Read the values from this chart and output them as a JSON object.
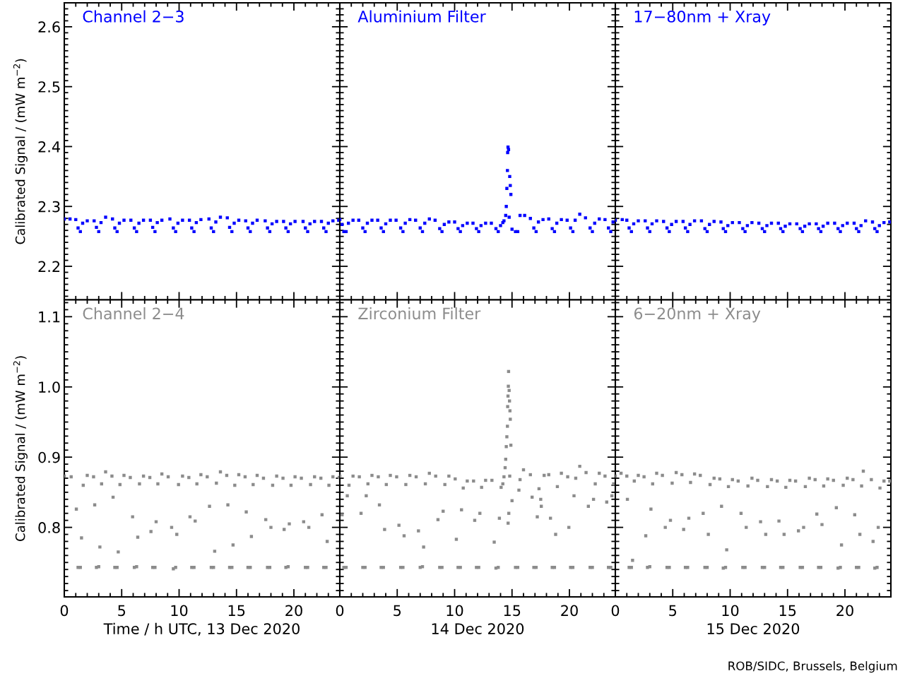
{
  "chart_data": [
    {
      "type": "scatter",
      "title": "Channel 2−3",
      "ylabel": "Calibrated Signal / (mW m$^{−2}$)",
      "marker": "square",
      "tick_labels": "y",
      "xlim": [
        0,
        24
      ],
      "xticks": [
        0,
        5,
        10,
        15,
        20
      ],
      "ylim": [
        2.144,
        2.64
      ],
      "yticks": [
        2.2,
        2.3,
        2.4,
        2.5,
        2.6
      ],
      "series": [
        {
          "color": "#0000ff",
          "x": [
            0,
            0.5,
            1.0,
            1.2,
            1.4,
            1.6,
            2.0,
            2.6,
            2.8,
            3.0,
            3.2,
            3.6,
            4.2,
            4.4,
            4.6,
            4.8,
            5.2,
            5.8,
            6.1,
            6.3,
            6.5,
            6.9,
            7.5,
            7.7,
            7.9,
            8.1,
            8.5,
            9.2,
            9.5,
            9.7,
            9.9,
            10.3,
            10.9,
            11.1,
            11.3,
            11.5,
            11.9,
            12.6,
            12.8,
            13.0,
            13.2,
            13.6,
            14.2,
            14.4,
            14.6,
            14.8,
            15.2,
            15.8,
            16.0,
            16.2,
            16.4,
            16.8,
            17.5,
            17.7,
            17.9,
            18.1,
            18.5,
            19.1,
            19.3,
            19.5,
            19.7,
            20.1,
            20.8,
            21.0,
            21.2,
            21.4,
            21.8,
            22.4,
            22.6,
            22.8,
            23.0,
            23.4,
            23.9
          ],
          "values": [
            2.279,
            2.279,
            2.278,
            2.264,
            2.258,
            2.272,
            2.276,
            2.276,
            2.265,
            2.258,
            2.273,
            2.282,
            2.279,
            2.264,
            2.258,
            2.272,
            2.277,
            2.277,
            2.264,
            2.258,
            2.272,
            2.277,
            2.277,
            2.265,
            2.258,
            2.273,
            2.277,
            2.279,
            2.264,
            2.258,
            2.272,
            2.277,
            2.277,
            2.264,
            2.258,
            2.273,
            2.278,
            2.279,
            2.264,
            2.258,
            2.274,
            2.282,
            2.281,
            2.265,
            2.258,
            2.272,
            2.277,
            2.276,
            2.264,
            2.258,
            2.272,
            2.277,
            2.276,
            2.264,
            2.258,
            2.271,
            2.275,
            2.275,
            2.264,
            2.258,
            2.271,
            2.275,
            2.275,
            2.264,
            2.258,
            2.271,
            2.275,
            2.275,
            2.264,
            2.258,
            2.272,
            2.276,
            2.277
          ]
        }
      ]
    },
    {
      "type": "scatter",
      "title": "Aluminium Filter",
      "marker": "square",
      "tick_labels": false,
      "xlim": [
        0,
        24
      ],
      "xticks": [
        0,
        5,
        10,
        15,
        20
      ],
      "ylim": [
        2.144,
        2.64
      ],
      "yticks": [
        2.2,
        2.3,
        2.4,
        2.5,
        2.6
      ],
      "series": [
        {
          "color": "#0000ff",
          "x": [
            0,
            0.2,
            0.35,
            0.55,
            0.75,
            1.15,
            1.65,
            2.0,
            2.2,
            2.4,
            2.8,
            3.3,
            3.6,
            3.8,
            4.0,
            4.4,
            4.9,
            5.3,
            5.5,
            5.7,
            6.1,
            6.6,
            7.0,
            7.2,
            7.4,
            7.8,
            8.3,
            8.7,
            8.9,
            9.1,
            9.5,
            10.0,
            10.3,
            10.5,
            10.7,
            11.1,
            11.6,
            11.9,
            12.1,
            12.3,
            12.7,
            13.2,
            13.6,
            13.8,
            14.0,
            14.2,
            14.3,
            14.45,
            14.5,
            14.55,
            14.6,
            14.62,
            14.65,
            14.7,
            14.75,
            14.8,
            14.85,
            14.9,
            15.0,
            15.3,
            15.5,
            15.7,
            16.1,
            16.6,
            16.9,
            17.1,
            17.3,
            17.7,
            18.2,
            18.5,
            18.7,
            18.9,
            19.3,
            19.8,
            20.1,
            20.3,
            20.5,
            20.9,
            21.4,
            21.8,
            22.0,
            22.2,
            22.6,
            23.1,
            23.4,
            23.6,
            23.8
          ],
          "values": [
            2.278,
            2.27,
            2.258,
            2.258,
            2.272,
            2.277,
            2.277,
            2.264,
            2.258,
            2.272,
            2.277,
            2.277,
            2.264,
            2.258,
            2.271,
            2.277,
            2.277,
            2.264,
            2.258,
            2.272,
            2.278,
            2.277,
            2.264,
            2.258,
            2.272,
            2.279,
            2.277,
            2.263,
            2.258,
            2.27,
            2.274,
            2.274,
            2.263,
            2.258,
            2.268,
            2.272,
            2.272,
            2.263,
            2.258,
            2.268,
            2.272,
            2.272,
            2.263,
            2.258,
            2.268,
            2.273,
            2.276,
            2.285,
            2.3,
            2.33,
            2.36,
            2.39,
            2.399,
            2.395,
            2.282,
            2.35,
            2.335,
            2.32,
            2.262,
            2.258,
            2.258,
            2.285,
            2.285,
            2.28,
            2.264,
            2.258,
            2.274,
            2.278,
            2.279,
            2.263,
            2.258,
            2.272,
            2.278,
            2.277,
            2.264,
            2.258,
            2.277,
            2.287,
            2.281,
            2.264,
            2.258,
            2.272,
            2.279,
            2.278,
            2.264,
            2.258,
            2.274
          ]
        }
      ]
    },
    {
      "type": "scatter",
      "title": "17−80nm + Xray",
      "marker": "square",
      "tick_labels": false,
      "xlim": [
        0,
        24
      ],
      "xticks": [
        0,
        5,
        10,
        15,
        20
      ],
      "ylim": [
        2.144,
        2.64
      ],
      "yticks": [
        2.2,
        2.3,
        2.4,
        2.5,
        2.6
      ],
      "series": [
        {
          "color": "#0000ff",
          "x": [
            0,
            0.6,
            1.0,
            1.2,
            1.4,
            1.6,
            2.0,
            2.6,
            2.8,
            3.0,
            3.2,
            3.6,
            4.2,
            4.5,
            4.7,
            4.9,
            5.3,
            5.9,
            6.1,
            6.3,
            6.5,
            6.9,
            7.5,
            7.8,
            8.0,
            8.2,
            8.6,
            9.2,
            9.4,
            9.6,
            9.8,
            10.2,
            10.8,
            11.1,
            11.3,
            11.5,
            11.9,
            12.5,
            12.8,
            13.0,
            13.2,
            13.6,
            14.2,
            14.4,
            14.6,
            14.8,
            15.2,
            15.8,
            16.1,
            16.3,
            16.5,
            16.9,
            17.5,
            17.7,
            17.9,
            18.1,
            18.5,
            19.1,
            19.4,
            19.6,
            19.8,
            20.2,
            20.8,
            21.0,
            21.2,
            21.4,
            21.8,
            22.4,
            22.6,
            22.8,
            23.0,
            23.4,
            23.9
          ],
          "values": [
            2.277,
            2.278,
            2.277,
            2.264,
            2.258,
            2.271,
            2.276,
            2.276,
            2.264,
            2.258,
            2.271,
            2.276,
            2.275,
            2.264,
            2.258,
            2.27,
            2.275,
            2.275,
            2.264,
            2.258,
            2.27,
            2.276,
            2.276,
            2.263,
            2.258,
            2.27,
            2.275,
            2.274,
            2.263,
            2.258,
            2.268,
            2.273,
            2.273,
            2.263,
            2.258,
            2.268,
            2.273,
            2.272,
            2.263,
            2.258,
            2.268,
            2.272,
            2.272,
            2.263,
            2.258,
            2.267,
            2.271,
            2.271,
            2.263,
            2.258,
            2.267,
            2.271,
            2.271,
            2.263,
            2.258,
            2.267,
            2.272,
            2.272,
            2.263,
            2.258,
            2.268,
            2.272,
            2.272,
            2.263,
            2.258,
            2.268,
            2.276,
            2.274,
            2.263,
            2.258,
            2.268,
            2.273,
            2.274
          ]
        }
      ]
    },
    {
      "type": "scatter",
      "title": "Channel 2−4",
      "xlabel": "Time / h UTC, 13 Dec 2020",
      "ylabel": "Calibrated Signal / (mW m$^{−2}$)",
      "marker": "square",
      "xlim": [
        0,
        24
      ],
      "xticks": [
        0,
        5,
        10,
        15,
        20
      ],
      "ylim": [
        0.701,
        1.124
      ],
      "yticks": [
        0.8,
        0.9,
        {
          "value": 1.0,
          "label": "1.0"
        },
        1.1
      ],
      "series": [
        {
          "color": "#8c8c8c",
          "x": [
            0,
            0.6,
            1.05,
            1.2,
            1.4,
            1.5,
            1.65,
            2.0,
            2.55,
            2.65,
            2.8,
            3.0,
            3.1,
            3.25,
            3.6,
            4.15,
            4.25,
            4.4,
            4.6,
            4.7,
            4.85,
            5.2,
            5.75,
            5.95,
            6.1,
            6.3,
            6.4,
            6.55,
            6.9,
            7.45,
            7.55,
            7.7,
            7.9,
            8.0,
            8.15,
            8.5,
            9.05,
            9.35,
            9.5,
            9.7,
            9.8,
            9.95,
            10.3,
            10.85,
            10.95,
            11.1,
            11.3,
            11.4,
            11.55,
            11.9,
            12.45,
            12.65,
            12.8,
            13.0,
            13.1,
            13.25,
            13.6,
            14.15,
            14.25,
            14.4,
            14.6,
            14.7,
            14.85,
            15.2,
            15.75,
            15.85,
            16.0,
            16.2,
            16.3,
            16.45,
            16.8,
            17.35,
            17.55,
            17.7,
            17.9,
            18.0,
            18.15,
            18.5,
            19.05,
            19.15,
            19.3,
            19.5,
            19.6,
            19.75,
            20.1,
            20.65,
            20.85,
            21.0,
            21.2,
            21.3,
            21.45,
            21.8,
            22.35,
            22.45,
            22.6,
            22.8,
            22.9,
            23.05,
            23.4,
            23.95
          ],
          "values": [
            0.873,
            0.872,
            0.826,
            0.743,
            0.743,
            0.785,
            0.86,
            0.874,
            0.872,
            0.832,
            0.743,
            0.744,
            0.772,
            0.862,
            0.879,
            0.873,
            0.843,
            0.743,
            0.743,
            0.765,
            0.861,
            0.874,
            0.871,
            0.815,
            0.743,
            0.744,
            0.786,
            0.862,
            0.873,
            0.871,
            0.794,
            0.743,
            0.743,
            0.808,
            0.862,
            0.876,
            0.872,
            0.8,
            0.741,
            0.743,
            0.79,
            0.861,
            0.873,
            0.871,
            0.815,
            0.743,
            0.743,
            0.809,
            0.862,
            0.875,
            0.872,
            0.83,
            0.743,
            0.743,
            0.766,
            0.863,
            0.879,
            0.874,
            0.832,
            0.743,
            0.743,
            0.775,
            0.86,
            0.875,
            0.872,
            0.822,
            0.743,
            0.743,
            0.787,
            0.861,
            0.874,
            0.87,
            0.811,
            0.743,
            0.743,
            0.8,
            0.86,
            0.873,
            0.87,
            0.797,
            0.743,
            0.744,
            0.805,
            0.86,
            0.872,
            0.87,
            0.808,
            0.743,
            0.743,
            0.8,
            0.861,
            0.872,
            0.87,
            0.818,
            0.743,
            0.743,
            0.78,
            0.86,
            0.872,
            0.871
          ]
        }
      ]
    },
    {
      "type": "scatter",
      "title": "Zirconium Filter",
      "xlabel": "14 Dec 2020",
      "marker": "square",
      "tick_labels": "x",
      "xlim": [
        0,
        24
      ],
      "xticks": [
        0,
        5,
        10,
        15,
        20
      ],
      "ylim": [
        0.701,
        1.124
      ],
      "yticks": [
        0.8,
        0.9,
        1.0,
        1.1
      ],
      "series": [
        {
          "color": "#8c8c8c",
          "x": [
            0,
            0.2,
            0.35,
            0.55,
            0.65,
            0.8,
            1.15,
            1.7,
            1.85,
            2.0,
            2.2,
            2.3,
            2.45,
            2.8,
            3.35,
            3.45,
            3.6,
            3.8,
            3.9,
            4.05,
            4.4,
            4.95,
            5.15,
            5.3,
            5.5,
            5.6,
            5.75,
            6.1,
            6.65,
            6.85,
            7.0,
            7.2,
            7.3,
            7.45,
            7.8,
            8.35,
            8.55,
            8.7,
            8.9,
            9.0,
            9.15,
            9.5,
            10.05,
            10.15,
            10.3,
            10.5,
            10.6,
            10.75,
            11.1,
            11.65,
            11.75,
            11.9,
            12.1,
            12.2,
            12.35,
            12.7,
            13.25,
            13.45,
            13.6,
            13.8,
            13.9,
            14.05,
            14.2,
            14.3,
            14.4,
            14.45,
            14.5,
            14.55,
            14.6,
            14.62,
            14.65,
            14.68,
            14.7,
            14.75,
            14.78,
            14.82,
            14.85,
            14.9,
            14.66,
            14.72,
            14.8,
            15.0,
            15.3,
            15.5,
            15.6,
            15.7,
            16.0,
            16.6,
            16.75,
            16.9,
            17.1,
            17.2,
            17.35,
            17.5,
            17.55,
            17.8,
            18.2,
            18.35,
            18.5,
            18.7,
            18.8,
            18.95,
            19.3,
            19.85,
            19.95,
            20.1,
            20.3,
            20.4,
            20.55,
            20.9,
            21.45,
            21.65,
            21.8,
            22.0,
            22.1,
            22.25,
            22.6,
            23.1,
            23.25,
            23.4,
            23.6,
            23.7,
            23.85
          ],
          "values": [
            0.873,
            0.818,
            0.743,
            0.743,
            0.845,
            0.86,
            0.873,
            0.872,
            0.82,
            0.743,
            0.743,
            0.845,
            0.862,
            0.874,
            0.872,
            0.832,
            0.743,
            0.743,
            0.797,
            0.861,
            0.874,
            0.872,
            0.803,
            0.743,
            0.743,
            0.788,
            0.861,
            0.874,
            0.872,
            0.795,
            0.743,
            0.744,
            0.772,
            0.862,
            0.877,
            0.873,
            0.811,
            0.743,
            0.743,
            0.823,
            0.861,
            0.873,
            0.869,
            0.783,
            0.743,
            0.743,
            0.825,
            0.856,
            0.866,
            0.866,
            0.81,
            0.743,
            0.743,
            0.82,
            0.857,
            0.867,
            0.867,
            0.779,
            0.742,
            0.743,
            0.813,
            0.857,
            0.862,
            0.872,
            0.885,
            0.897,
            0.915,
            0.929,
            0.944,
            0.972,
            0.987,
            1.001,
            1.022,
            0.995,
            0.98,
            0.966,
            0.954,
            0.917,
            0.806,
            0.82,
            0.873,
            0.838,
            0.743,
            0.743,
            0.853,
            0.868,
            0.882,
            0.875,
            0.843,
            0.743,
            0.743,
            0.815,
            0.855,
            0.84,
            0.83,
            0.874,
            0.875,
            0.813,
            0.743,
            0.743,
            0.79,
            0.858,
            0.877,
            0.872,
            0.8,
            0.743,
            0.743,
            0.845,
            0.87,
            0.887,
            0.878,
            0.83,
            0.743,
            0.743,
            0.84,
            0.862,
            0.877,
            0.873,
            0.836,
            0.743,
            0.743,
            0.845,
            0.862
          ]
        }
      ]
    },
    {
      "type": "scatter",
      "title": "6−20nm + Xray",
      "xlabel": "15 Dec 2020",
      "marker": "square",
      "tick_labels": "x",
      "xlim": [
        0,
        24
      ],
      "xticks": [
        0,
        5,
        10,
        15,
        20
      ],
      "ylim": [
        0.701,
        1.124
      ],
      "yticks": [
        0.8,
        0.9,
        1.0,
        1.1
      ],
      "annotations": [
        "ROB/SIDC, Brussels, Belgium"
      ],
      "series": [
        {
          "color": "#8c8c8c",
          "x": [
            0,
            0.5,
            1.0,
            1.05,
            1.2,
            1.4,
            1.5,
            1.65,
            2.0,
            2.5,
            2.65,
            2.8,
            3.0,
            3.1,
            3.25,
            3.6,
            4.1,
            4.35,
            4.5,
            4.7,
            4.8,
            4.95,
            5.3,
            5.8,
            5.95,
            6.1,
            6.3,
            6.4,
            6.55,
            6.9,
            7.4,
            7.65,
            7.8,
            8.0,
            8.1,
            8.25,
            8.6,
            9.1,
            9.25,
            9.4,
            9.6,
            9.7,
            9.85,
            10.2,
            10.7,
            10.95,
            11.1,
            11.3,
            11.4,
            11.55,
            11.9,
            12.4,
            12.65,
            12.8,
            13.0,
            13.1,
            13.25,
            13.6,
            14.1,
            14.25,
            14.4,
            14.6,
            14.7,
            14.85,
            15.2,
            15.7,
            15.95,
            16.1,
            16.3,
            16.4,
            16.55,
            16.9,
            17.4,
            17.55,
            17.7,
            17.9,
            18.0,
            18.15,
            18.5,
            19.0,
            19.25,
            19.4,
            19.6,
            19.7,
            19.85,
            20.2,
            20.7,
            20.85,
            21.0,
            21.2,
            21.3,
            21.45,
            21.6,
            22.3,
            22.45,
            22.6,
            22.8,
            22.9,
            23.05,
            23.4,
            23.9
          ],
          "values": [
            0.873,
            0.877,
            0.873,
            0.84,
            0.743,
            0.743,
            0.753,
            0.866,
            0.874,
            0.872,
            0.788,
            0.743,
            0.744,
            0.826,
            0.862,
            0.877,
            0.874,
            0.8,
            0.743,
            0.743,
            0.81,
            0.863,
            0.878,
            0.875,
            0.797,
            0.743,
            0.743,
            0.813,
            0.864,
            0.876,
            0.874,
            0.82,
            0.743,
            0.743,
            0.79,
            0.861,
            0.87,
            0.869,
            0.83,
            0.742,
            0.743,
            0.768,
            0.858,
            0.868,
            0.866,
            0.82,
            0.743,
            0.743,
            0.8,
            0.859,
            0.87,
            0.867,
            0.808,
            0.743,
            0.743,
            0.79,
            0.858,
            0.868,
            0.866,
            0.809,
            0.743,
            0.743,
            0.79,
            0.857,
            0.867,
            0.866,
            0.795,
            0.743,
            0.743,
            0.8,
            0.858,
            0.87,
            0.868,
            0.819,
            0.743,
            0.743,
            0.804,
            0.859,
            0.869,
            0.867,
            0.828,
            0.742,
            0.743,
            0.775,
            0.86,
            0.87,
            0.868,
            0.818,
            0.743,
            0.743,
            0.79,
            0.859,
            0.88,
            0.868,
            0.78,
            0.742,
            0.743,
            0.8,
            0.856,
            0.866,
            0.866
          ]
        }
      ]
    }
  ]
}
